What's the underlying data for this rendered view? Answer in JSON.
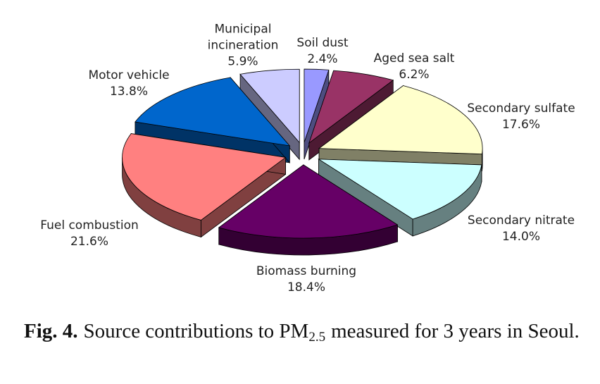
{
  "chart_data": {
    "type": "pie",
    "categories": [
      "Soil dust",
      "Aged sea salt",
      "Secondary sulfate",
      "Secondary nitrate",
      "Biomass burning",
      "Fuel combustion",
      "Motor vehicle",
      "Municipal incineration"
    ],
    "values": [
      2.4,
      6.2,
      17.6,
      14.0,
      18.4,
      21.6,
      13.8,
      5.9
    ],
    "value_labels": [
      "2.4%",
      "6.2%",
      "17.6%",
      "14.0%",
      "18.4%",
      "21.6%",
      "13.8%",
      "5.9%"
    ],
    "colors": [
      "#9999ff",
      "#993366",
      "#ffffcc",
      "#ccffff",
      "#660066",
      "#ff8080",
      "#0066cc",
      "#ccccff"
    ],
    "caption": {
      "label": "Fig. 4.",
      "text": "Source contributions to PM",
      "subscript": "2.5",
      "text_after": "measured for 3 years in Seoul."
    }
  }
}
